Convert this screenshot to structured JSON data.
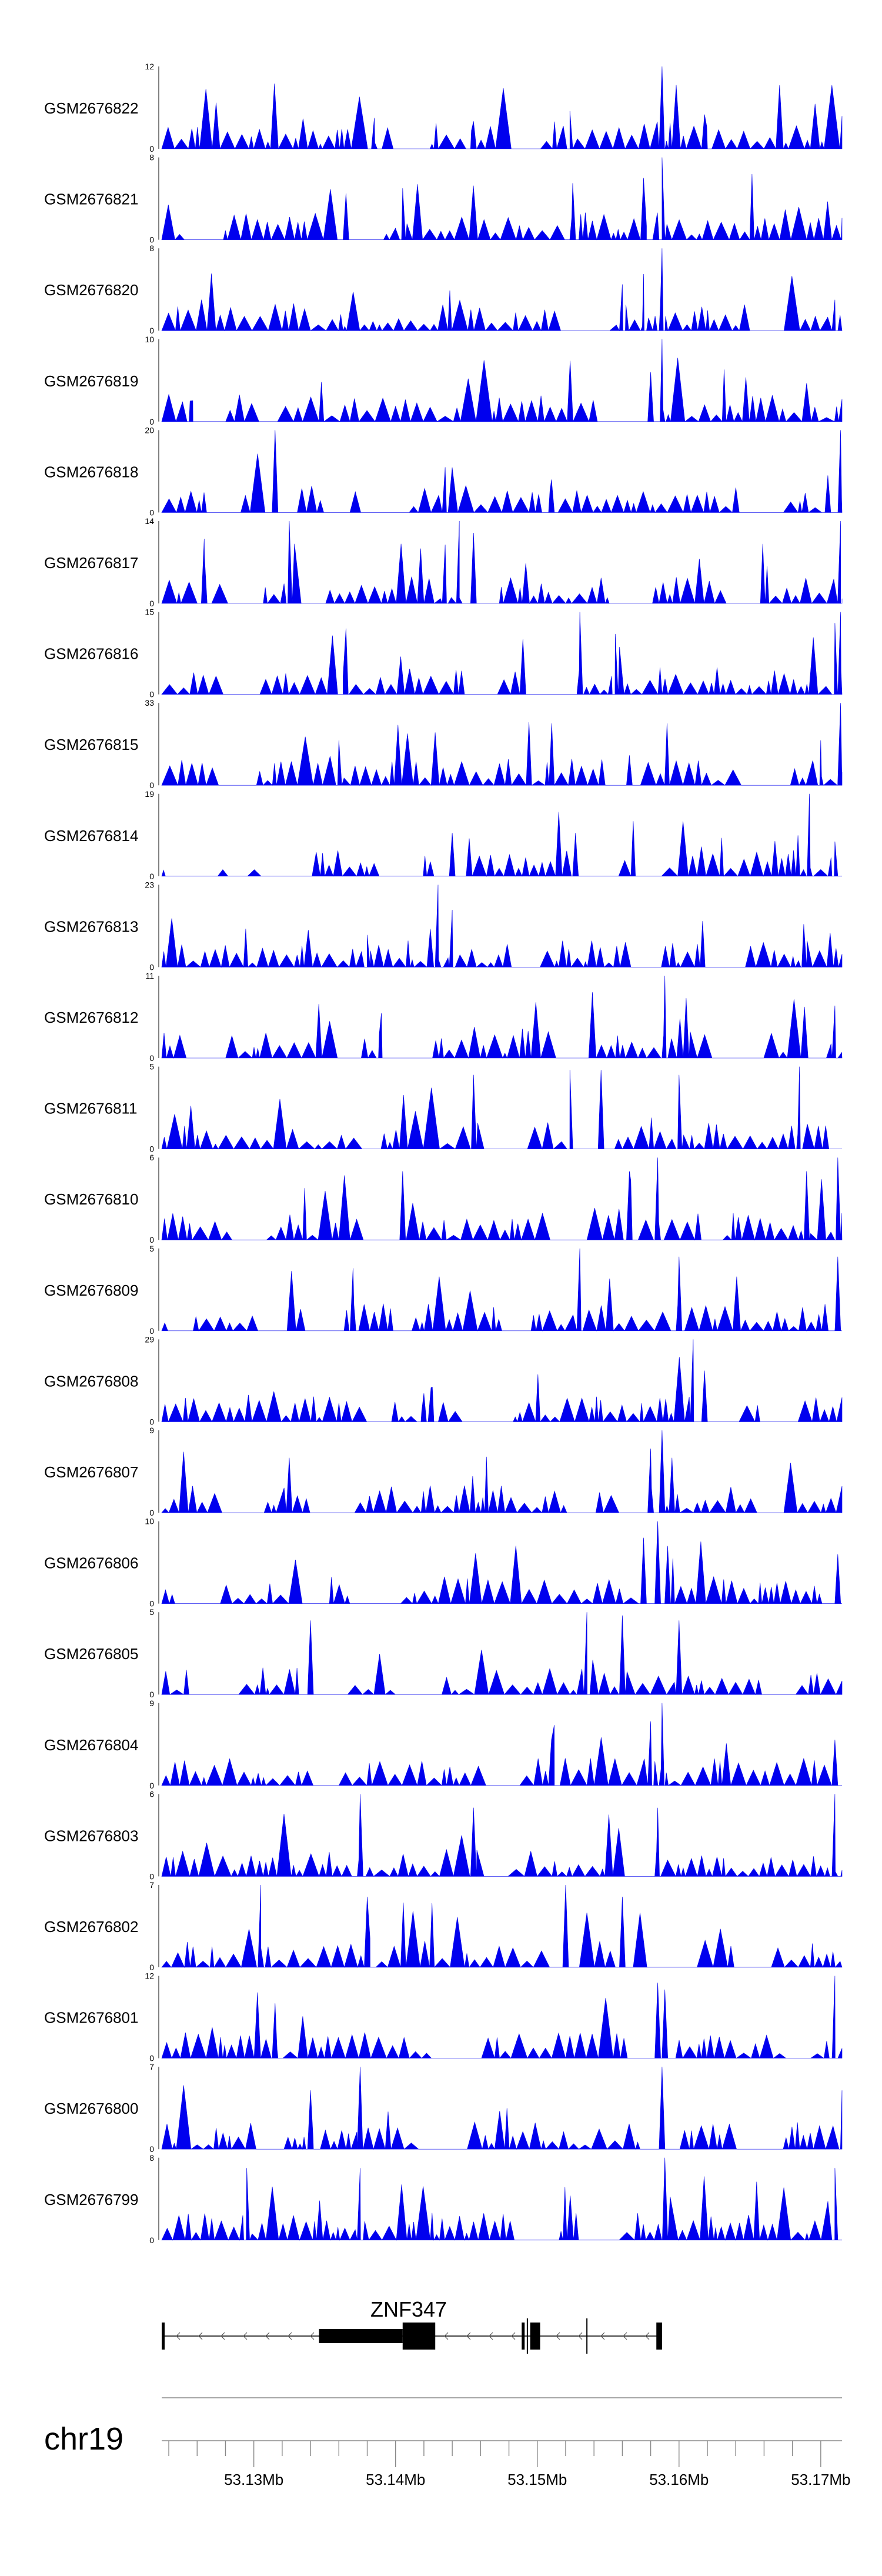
{
  "chart_data": {
    "type": "area",
    "chromosome": "chr19",
    "xlim": [
      53.1235,
      53.1715
    ],
    "x_ticks": [
      {
        "value": 53.13,
        "label": "53.13Mb"
      },
      {
        "value": 53.14,
        "label": "53.14Mb"
      },
      {
        "value": 53.15,
        "label": "53.15Mb"
      },
      {
        "value": 53.16,
        "label": "53.16Mb"
      },
      {
        "value": 53.17,
        "label": "53.17Mb"
      }
    ],
    "fill_color": "#0000EE",
    "tracks": [
      {
        "name": "GSM2676822",
        "ylim": [
          0,
          12
        ],
        "ymax_label": "12",
        "ymin_label": "0",
        "peaks": [
          [
            53.1588,
            12
          ],
          [
            53.1523,
            5.5
          ],
          [
            53.1618,
            5
          ],
          [
            53.1385,
            4.5
          ],
          [
            53.1455,
            4
          ]
        ]
      },
      {
        "name": "GSM2676821",
        "ylim": [
          0,
          8
        ],
        "ymax_label": "8",
        "ymin_label": "0",
        "peaks": [
          [
            53.1588,
            8
          ],
          [
            53.1575,
            6
          ],
          [
            53.1405,
            5
          ],
          [
            53.1525,
            5.5
          ],
          [
            53.1365,
            4.5
          ]
        ]
      },
      {
        "name": "GSM2676820",
        "ylim": [
          0,
          8
        ],
        "ymax_label": "8",
        "ymin_label": "0",
        "peaks": [
          [
            53.1588,
            8
          ],
          [
            53.1575,
            5.5
          ],
          [
            53.156,
            4.5
          ],
          [
            53.171,
            3
          ]
        ]
      },
      {
        "name": "GSM2676819",
        "ylim": [
          0,
          10
        ],
        "ymax_label": "10",
        "ymin_label": "0",
        "peaks": [
          [
            53.1588,
            10
          ],
          [
            53.158,
            6
          ],
          [
            53.1255,
            2.5
          ]
        ]
      },
      {
        "name": "GSM2676818",
        "ylim": [
          0,
          20
        ],
        "ymax_label": "20",
        "ymin_label": "0",
        "peaks": [
          [
            53.1315,
            20
          ],
          [
            53.1714,
            20
          ],
          [
            53.1435,
            11
          ],
          [
            53.151,
            8
          ],
          [
            53.1705,
            9
          ]
        ]
      },
      {
        "name": "GSM2676817",
        "ylim": [
          0,
          14
        ],
        "ymax_label": "14",
        "ymin_label": "0",
        "peaks": [
          [
            53.1325,
            14
          ],
          [
            53.1445,
            14
          ],
          [
            53.1714,
            14
          ],
          [
            53.1455,
            12
          ],
          [
            53.1435,
            10
          ],
          [
            53.1265,
            11
          ]
        ]
      },
      {
        "name": "GSM2676816",
        "ylim": [
          0,
          15
        ],
        "ymax_label": "15",
        "ymin_label": "0",
        "peaks": [
          [
            53.153,
            15
          ],
          [
            53.1714,
            15
          ],
          [
            53.1365,
            12
          ],
          [
            53.1555,
            11
          ],
          [
            53.171,
            13
          ]
        ]
      },
      {
        "name": "GSM2676815",
        "ylim": [
          0,
          33
        ],
        "ymax_label": "33",
        "ymin_label": "0",
        "peaks": [
          [
            53.1714,
            33
          ],
          [
            53.17,
            18
          ],
          [
            53.136,
            18
          ],
          [
            53.1565,
            12
          ]
        ]
      },
      {
        "name": "GSM2676814",
        "ylim": [
          0,
          19
        ],
        "ymax_label": "19",
        "ymin_label": "0",
        "peaks": [
          [
            53.1692,
            19
          ],
          [
            53.144,
            10
          ],
          [
            53.1527,
            10
          ],
          [
            53.171,
            8
          ]
        ]
      },
      {
        "name": "GSM2676813",
        "ylim": [
          0,
          23
        ],
        "ymax_label": "23",
        "ymin_label": "0",
        "peaks": [
          [
            53.143,
            23
          ],
          [
            53.144,
            16
          ],
          [
            53.1688,
            12
          ],
          [
            53.138,
            9
          ]
        ]
      },
      {
        "name": "GSM2676812",
        "ylim": [
          0,
          11
        ],
        "ymax_label": "11",
        "ymin_label": "0",
        "peaks": [
          [
            53.159,
            11
          ],
          [
            53.1605,
            8
          ],
          [
            53.171,
            7
          ],
          [
            53.139,
            6
          ]
        ]
      },
      {
        "name": "GSM2676811",
        "ylim": [
          0,
          5
        ],
        "ymax_label": "5",
        "ymin_label": "0",
        "peaks": [
          [
            53.1685,
            5
          ],
          [
            53.1523,
            4.8
          ],
          [
            53.1545,
            4.8
          ],
          [
            53.1455,
            4.5
          ],
          [
            53.16,
            4.5
          ]
        ]
      },
      {
        "name": "GSM2676810",
        "ylim": [
          0,
          6
        ],
        "ymax_label": "6",
        "ymin_label": "0",
        "peaks": [
          [
            53.1585,
            6
          ],
          [
            53.1712,
            6
          ],
          [
            53.1565,
            5
          ],
          [
            53.1405,
            5
          ],
          [
            53.169,
            5
          ]
        ]
      },
      {
        "name": "GSM2676809",
        "ylim": [
          0,
          5
        ],
        "ymax_label": "5",
        "ymin_label": "0",
        "peaks": [
          [
            53.153,
            5
          ],
          [
            53.16,
            4.5
          ],
          [
            53.1712,
            4.5
          ],
          [
            53.137,
            3.8
          ]
        ]
      },
      {
        "name": "GSM2676808",
        "ylim": [
          0,
          29
        ],
        "ymax_label": "29",
        "ymin_label": "0",
        "peaks": [
          [
            53.161,
            29
          ],
          [
            53.1618,
            18
          ],
          [
            53.1425,
            12
          ],
          [
            53.142,
            10
          ]
        ]
      },
      {
        "name": "GSM2676807",
        "ylim": [
          0,
          9
        ],
        "ymax_label": "9",
        "ymin_label": "0",
        "peaks": [
          [
            53.1588,
            9
          ],
          [
            53.158,
            7
          ],
          [
            53.1595,
            6
          ],
          [
            53.1325,
            6
          ]
        ]
      },
      {
        "name": "GSM2676806",
        "ylim": [
          0,
          10
        ],
        "ymax_label": "10",
        "ymin_label": "0",
        "peaks": [
          [
            53.1585,
            10
          ],
          [
            53.1575,
            8
          ],
          [
            53.1592,
            7
          ],
          [
            53.1712,
            6
          ]
        ]
      },
      {
        "name": "GSM2676805",
        "ylim": [
          0,
          5
        ],
        "ymax_label": "5",
        "ymin_label": "0",
        "peaks": [
          [
            53.1535,
            5
          ],
          [
            53.156,
            4.8
          ],
          [
            53.134,
            4.5
          ],
          [
            53.16,
            4.5
          ]
        ]
      },
      {
        "name": "GSM2676804",
        "ylim": [
          0,
          9
        ],
        "ymax_label": "9",
        "ymin_label": "0",
        "peaks": [
          [
            53.1588,
            9
          ],
          [
            53.158,
            7
          ],
          [
            53.151,
            5
          ],
          [
            53.171,
            5
          ]
        ]
      },
      {
        "name": "GSM2676803",
        "ylim": [
          0,
          6
        ],
        "ymax_label": "6",
        "ymin_label": "0",
        "peaks": [
          [
            53.1375,
            6
          ],
          [
            53.171,
            6
          ],
          [
            53.1455,
            5
          ],
          [
            53.1585,
            5
          ]
        ]
      },
      {
        "name": "GSM2676802",
        "ylim": [
          0,
          7
        ],
        "ymax_label": "7",
        "ymin_label": "0",
        "peaks": [
          [
            53.1305,
            7
          ],
          [
            53.152,
            7
          ],
          [
            53.138,
            6
          ],
          [
            53.156,
            6
          ]
        ]
      },
      {
        "name": "GSM2676801",
        "ylim": [
          0,
          12
        ],
        "ymax_label": "12",
        "ymin_label": "0",
        "peaks": [
          [
            53.171,
            12
          ],
          [
            53.1585,
            11
          ],
          [
            53.159,
            10
          ],
          [
            53.1315,
            8
          ]
        ]
      },
      {
        "name": "GSM2676800",
        "ylim": [
          0,
          7
        ],
        "ymax_label": "7",
        "ymin_label": "0",
        "peaks": [
          [
            53.1375,
            7
          ],
          [
            53.1588,
            7
          ],
          [
            53.134,
            5
          ],
          [
            53.1715,
            5
          ]
        ]
      },
      {
        "name": "GSM2676799",
        "ylim": [
          0,
          8
        ],
        "ymax_label": "8",
        "ymin_label": "0",
        "peaks": [
          [
            53.159,
            8
          ],
          [
            53.1375,
            7
          ],
          [
            53.1295,
            7
          ],
          [
            53.171,
            7
          ]
        ]
      }
    ],
    "gene": {
      "name": "ZNF347",
      "strand": "-",
      "start": 53.1235,
      "end": 53.1588,
      "exons": [
        {
          "start": 53.1235,
          "end": 53.1237,
          "type": "coding"
        },
        {
          "start": 53.1346,
          "end": 53.1405,
          "type": "utr"
        },
        {
          "start": 53.1405,
          "end": 53.1428,
          "type": "coding"
        },
        {
          "start": 53.1489,
          "end": 53.1491,
          "type": "coding"
        },
        {
          "start": 53.1495,
          "end": 53.1502,
          "type": "coding"
        },
        {
          "start": 53.1584,
          "end": 53.1588,
          "type": "coding"
        }
      ],
      "tss_marks": [
        53.1493,
        53.1535
      ]
    }
  }
}
